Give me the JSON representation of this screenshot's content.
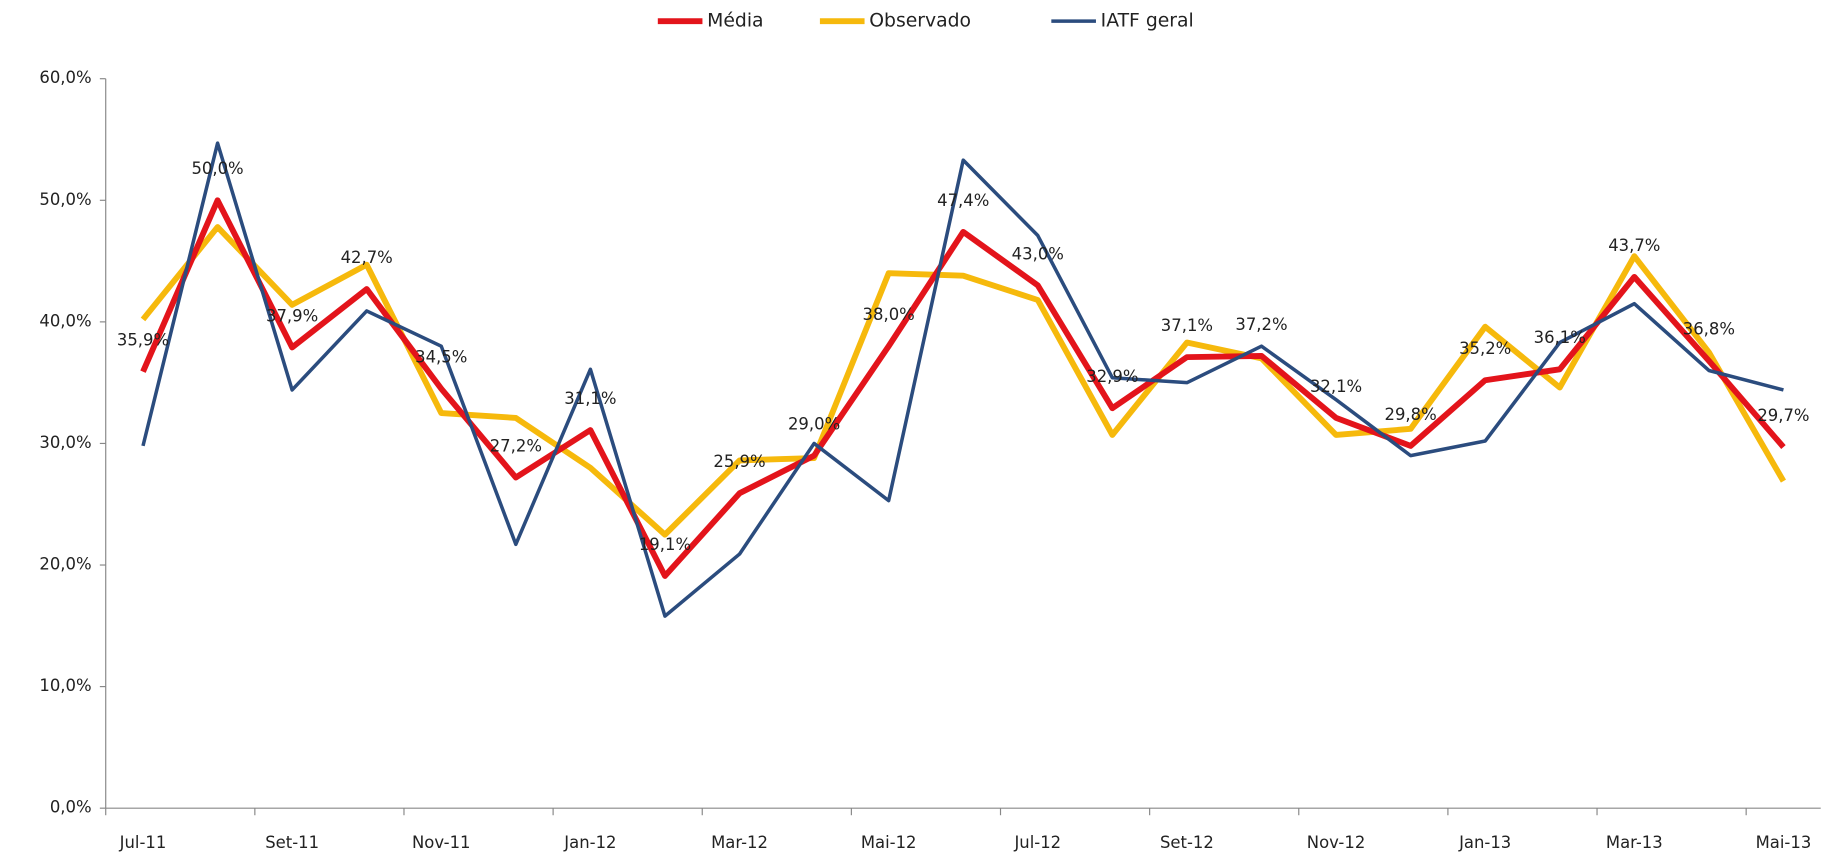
{
  "chart_data": {
    "type": "line",
    "categories": [
      "Jul-11",
      null,
      "Set-11",
      null,
      "Nov-11",
      null,
      "Jan-12",
      null,
      "Mar-12",
      null,
      "Mai-12",
      null,
      "Jul-12",
      null,
      "Set-12",
      null,
      "Nov-12",
      null,
      "Jan-13",
      null,
      "Mar-13",
      null,
      "Mai-13"
    ],
    "series": [
      {
        "name": "Média",
        "color": "#e3141b",
        "width": 5,
        "values": [
          35.9,
          50.0,
          37.9,
          42.7,
          34.5,
          27.2,
          31.1,
          19.1,
          25.9,
          29.0,
          38.0,
          47.4,
          43.0,
          32.9,
          37.1,
          37.2,
          32.1,
          29.8,
          35.2,
          36.1,
          43.7,
          36.8,
          29.7
        ],
        "value_labels": [
          "35,9%",
          "50,0%",
          "37,9%",
          "42,7%",
          "34,5%",
          "27,2%",
          "31,1%",
          "19,1%",
          "25,9%",
          "29,0%",
          "38,0%",
          "47,4%",
          "43,0%",
          "32,9%",
          "37,1%",
          "37,2%",
          "32,1%",
          "29,8%",
          "35,2%",
          "36,1%",
          "43,7%",
          "36,8%",
          "29,7%"
        ]
      },
      {
        "name": "Observado",
        "color": "#f6b90c",
        "width": 5,
        "values": [
          40.2,
          47.8,
          41.4,
          44.7,
          32.5,
          32.1,
          28.0,
          22.5,
          28.6,
          28.8,
          44.0,
          43.8,
          41.8,
          30.7,
          38.3,
          37.0,
          30.7,
          31.2,
          39.6,
          34.6,
          45.4,
          37.5,
          26.9
        ]
      },
      {
        "name": "IATF geral",
        "color": "#2b4c7e",
        "width": 3,
        "values": [
          29.8,
          54.7,
          34.4,
          40.9,
          38.0,
          21.7,
          36.1,
          15.8,
          20.9,
          30.0,
          25.3,
          53.3,
          47.1,
          35.4,
          35.0,
          38.0,
          33.6,
          29.0,
          30.2,
          38.3,
          41.5,
          36.0,
          34.4
        ]
      }
    ],
    "ylim": [
      0,
      60
    ],
    "yticks": [
      {
        "value": 0,
        "label": "0,0%"
      },
      {
        "value": 10,
        "label": "10,0%"
      },
      {
        "value": 20,
        "label": "20,0%"
      },
      {
        "value": 30,
        "label": "30,0%"
      },
      {
        "value": 40,
        "label": "40,0%"
      },
      {
        "value": 50,
        "label": "50,0%"
      },
      {
        "value": 60,
        "label": "60,0%"
      }
    ],
    "legend": "top"
  }
}
